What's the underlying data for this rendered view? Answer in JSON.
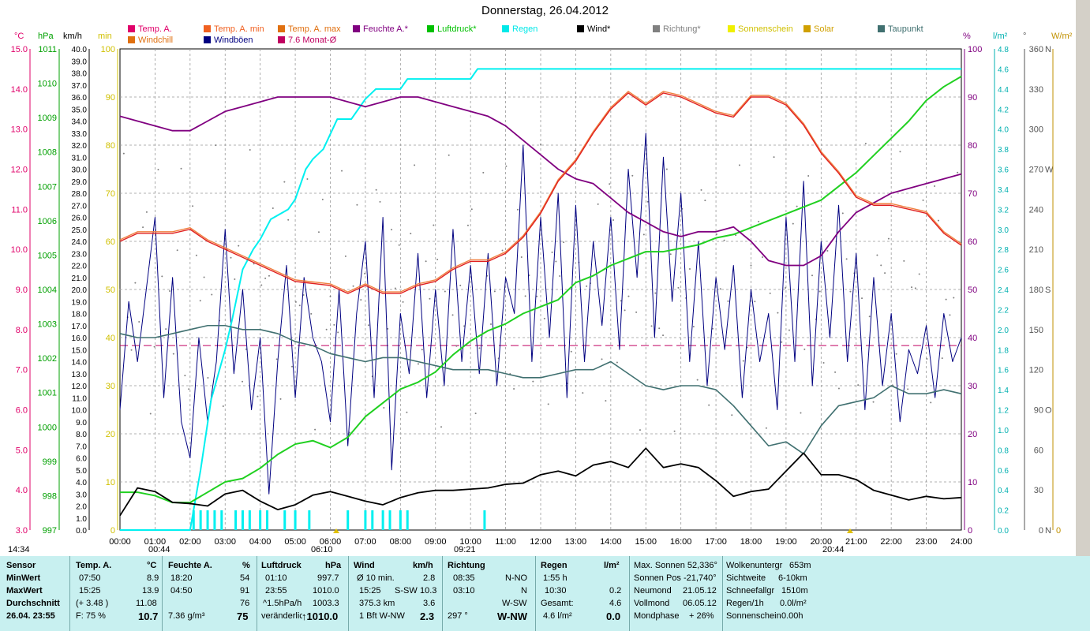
{
  "title": "Donnerstag, 26.04.2012",
  "legend_row1": [
    {
      "label": "Temp. A.",
      "color": "#e0006a"
    },
    {
      "label": "Temp. A. min",
      "color": "#f06020"
    },
    {
      "label": "Temp. A. max",
      "color": "#e07010"
    },
    {
      "label": "Feuchte A.*",
      "color": "#800080"
    },
    {
      "label": "Luftdruck*",
      "color": "#00c000"
    },
    {
      "label": "Regen",
      "color": "#00e8e8"
    },
    {
      "label": "Wind*",
      "color": "#000000"
    },
    {
      "label": "Richtung*",
      "color": "#808080"
    },
    {
      "label": "Sonnenschein",
      "color": "#f0f000"
    },
    {
      "label": "Solar",
      "color": "#d0a000"
    },
    {
      "label": "Taupunkt",
      "color": "#407070"
    }
  ],
  "legend_row2": [
    {
      "label": "Windchill",
      "color": "#e07010"
    },
    {
      "label": "Windböen",
      "color": "#000080"
    },
    {
      "label": "7.6 Monat-Ø",
      "color": "#c00060"
    }
  ],
  "axis_headers": {
    "temp": "°C",
    "press": "hPa",
    "wind": "km/h",
    "min": "min",
    "hum": "%",
    "rain": "l/m²",
    "dir": "°",
    "solar": "W/m²"
  },
  "chart_data": {
    "type": "line",
    "title": "Donnerstag, 26.04.2012",
    "x_ticks": [
      "00:00",
      "01:00",
      "02:00",
      "03:00",
      "04:00",
      "05:00",
      "06:00",
      "07:00",
      "08:00",
      "09:00",
      "10:00",
      "11:00",
      "12:00",
      "13:00",
      "14:00",
      "15:00",
      "16:00",
      "17:00",
      "18:00",
      "19:00",
      "20:00",
      "21:00",
      "22:00",
      "23:00",
      "24:00"
    ],
    "axes": {
      "temp": {
        "range": [
          3.0,
          15.0
        ],
        "ticks": [
          "3.0",
          "4.0",
          "5.0",
          "6.0",
          "7.0",
          "8.0",
          "9.0",
          "10.0",
          "11.0",
          "12.0",
          "13.0",
          "14.0",
          "15.0"
        ]
      },
      "pressure": {
        "range": [
          997,
          1011
        ],
        "ticks": [
          "997",
          "998",
          "999",
          "1000",
          "1001",
          "1002",
          "1003",
          "1004",
          "1005",
          "1006",
          "1007",
          "1008",
          "1009",
          "1010",
          "1011"
        ]
      },
      "wind": {
        "range": [
          0.0,
          40.0
        ],
        "ticks": [
          "0.0",
          "1.0",
          "2.0",
          "3.0",
          "4.0",
          "5.0",
          "6.0",
          "7.0",
          "8.0",
          "9.0",
          "10.0",
          "11.0",
          "12.0",
          "13.0",
          "14.0",
          "15.0",
          "16.0",
          "17.0",
          "18.0",
          "19.0",
          "20.0",
          "21.0",
          "22.0",
          "23.0",
          "24.0",
          "25.0",
          "26.0",
          "27.0",
          "28.0",
          "29.0",
          "30.0",
          "31.0",
          "32.0",
          "33.0",
          "34.0",
          "35.0",
          "36.0",
          "37.0",
          "38.0",
          "39.0",
          "40.0"
        ]
      },
      "minutes": {
        "range": [
          0,
          100
        ],
        "ticks": [
          "0",
          "10",
          "20",
          "30",
          "40",
          "50",
          "60",
          "70",
          "80",
          "90",
          "100"
        ]
      },
      "humidity": {
        "range": [
          0,
          100
        ],
        "ticks": [
          "0",
          "10",
          "20",
          "30",
          "40",
          "50",
          "60",
          "70",
          "80",
          "90",
          "100"
        ]
      },
      "rain": {
        "range": [
          0.0,
          4.8
        ],
        "ticks": [
          "0.0",
          "0.2",
          "0.4",
          "0.6",
          "0.8",
          "1.0",
          "1.2",
          "1.4",
          "1.6",
          "1.8",
          "2.0",
          "2.2",
          "2.4",
          "2.6",
          "2.8",
          "3.0",
          "3.2",
          "3.4",
          "3.6",
          "3.8",
          "4.0",
          "4.2",
          "4.4",
          "4.6",
          "4.8"
        ]
      },
      "direction": {
        "range": [
          0,
          360
        ],
        "ticks": [
          "0",
          "30",
          "60",
          "90",
          "120",
          "150",
          "180",
          "210",
          "240",
          "270",
          "300",
          "330",
          "360"
        ],
        "labels": {
          "0": "N",
          "90": "O",
          "180": "S",
          "270": "W",
          "360": "N"
        }
      },
      "solar": {
        "range": [
          0,
          0
        ],
        "ticks": [
          "0"
        ]
      }
    },
    "series": [
      {
        "name": "Temp. A.",
        "axis": "temp",
        "color": "#e02020",
        "x": [
          0,
          0.5,
          1,
          1.5,
          2,
          2.5,
          3,
          4,
          5,
          6,
          6.5,
          7,
          7.5,
          8,
          8.5,
          9,
          9.5,
          10,
          10.5,
          11,
          11.5,
          12,
          12.5,
          13,
          13.5,
          14,
          14.5,
          15,
          15.5,
          16,
          16.5,
          17,
          17.5,
          18,
          18.5,
          19,
          19.5,
          20,
          20.5,
          21,
          21.5,
          22,
          22.5,
          23,
          23.5,
          24
        ],
        "values": [
          10.2,
          10.4,
          10.4,
          10.4,
          10.5,
          10.2,
          10.0,
          9.6,
          9.2,
          9.1,
          8.9,
          9.1,
          8.9,
          8.9,
          9.1,
          9.2,
          9.5,
          9.7,
          9.7,
          9.9,
          10.3,
          10.9,
          11.7,
          12.2,
          12.9,
          13.5,
          13.9,
          13.6,
          13.9,
          13.8,
          13.6,
          13.4,
          13.3,
          13.8,
          13.8,
          13.6,
          13.1,
          12.4,
          11.9,
          11.3,
          11.1,
          11.1,
          11.0,
          10.9,
          10.4,
          10.1
        ]
      },
      {
        "name": "Feuchte A.*",
        "axis": "humidity",
        "color": "#800080",
        "x": [
          0,
          0.5,
          1,
          1.5,
          2,
          2.5,
          3,
          3.5,
          4,
          4.5,
          5,
          5.5,
          6,
          6.5,
          7,
          7.5,
          8,
          8.5,
          9,
          9.5,
          10,
          10.5,
          11,
          11.5,
          12,
          12.5,
          13,
          13.5,
          14,
          14.5,
          15,
          15.5,
          16,
          16.5,
          17,
          17.5,
          18,
          18.5,
          19,
          19.5,
          20,
          20.5,
          21,
          21.5,
          22,
          22.5,
          23,
          23.5,
          24
        ],
        "values": [
          86,
          85,
          84,
          83,
          83,
          85,
          87,
          88,
          89,
          90,
          90,
          90,
          90,
          89,
          88,
          89,
          90,
          90,
          89,
          88,
          87,
          86,
          84,
          81,
          78,
          75,
          73,
          72,
          69,
          66,
          64,
          62,
          61,
          62,
          62,
          63,
          60,
          56,
          55,
          55,
          57,
          62,
          66,
          68,
          70,
          71,
          72,
          73,
          74
        ]
      },
      {
        "name": "Luftdruck*",
        "axis": "pressure",
        "color": "#20d020",
        "x": [
          0,
          0.5,
          1,
          1.5,
          2,
          2.5,
          3,
          3.5,
          4,
          4.5,
          5,
          5.5,
          6,
          6.5,
          7,
          7.5,
          8,
          8.5,
          9,
          9.5,
          10,
          10.5,
          11,
          11.5,
          12,
          12.5,
          13,
          13.5,
          14,
          14.5,
          15,
          15.5,
          16,
          16.5,
          17,
          17.5,
          18,
          18.5,
          19,
          19.5,
          20,
          20.5,
          21,
          21.5,
          22,
          22.5,
          23,
          23.5,
          24
        ],
        "values": [
          998.1,
          998.1,
          998.0,
          997.8,
          997.8,
          998.1,
          998.4,
          998.5,
          998.8,
          999.2,
          999.5,
          999.6,
          999.4,
          999.7,
          1000.3,
          1000.7,
          1001.1,
          1001.3,
          1001.6,
          1002.1,
          1002.5,
          1002.8,
          1003.0,
          1003.3,
          1003.5,
          1003.7,
          1004.2,
          1004.4,
          1004.7,
          1004.9,
          1005.1,
          1005.1,
          1005.2,
          1005.3,
          1005.5,
          1005.6,
          1005.8,
          1006.0,
          1006.2,
          1006.4,
          1006.6,
          1007.0,
          1007.4,
          1007.9,
          1008.4,
          1008.9,
          1009.5,
          1009.9,
          1010.2
        ]
      },
      {
        "name": "Regen",
        "axis": "rain",
        "color": "#00f0f0",
        "x": [
          0,
          2.0,
          2.3,
          2.6,
          3.0,
          3.2,
          3.5,
          3.8,
          4.0,
          4.3,
          4.8,
          5.0,
          5.3,
          5.5,
          5.8,
          6.2,
          6.6,
          7.0,
          7.3,
          7.6,
          8.0,
          8.2,
          8.5,
          9.5,
          10.0,
          10.2,
          10.5,
          24
        ],
        "values": [
          0,
          0,
          0.6,
          1.3,
          1.8,
          2.1,
          2.6,
          2.8,
          2.9,
          3.1,
          3.2,
          3.3,
          3.6,
          3.7,
          3.8,
          4.1,
          4.1,
          4.3,
          4.4,
          4.4,
          4.4,
          4.5,
          4.5,
          4.5,
          4.5,
          4.6,
          4.6,
          4.6
        ]
      },
      {
        "name": "Taupunkt",
        "axis": "temp",
        "color": "#407070",
        "x": [
          0,
          0.5,
          1,
          1.5,
          2,
          2.5,
          3,
          3.5,
          4,
          4.5,
          5,
          5.5,
          6,
          6.5,
          7,
          7.5,
          8,
          8.5,
          9,
          9.5,
          10,
          10.5,
          11,
          11.5,
          12,
          12.5,
          13,
          13.5,
          14,
          14.5,
          15,
          15.5,
          16,
          16.5,
          17,
          17.5,
          18,
          18.5,
          19,
          19.5,
          20,
          20.5,
          21,
          21.5,
          22,
          22.5,
          23,
          23.5,
          24
        ],
        "values": [
          7.9,
          7.8,
          7.8,
          7.9,
          8.0,
          8.1,
          8.1,
          8.0,
          8.0,
          7.9,
          7.7,
          7.6,
          7.4,
          7.3,
          7.2,
          7.3,
          7.3,
          7.2,
          7.1,
          7.0,
          7.0,
          7.0,
          6.9,
          6.8,
          6.8,
          6.9,
          7.0,
          7.0,
          7.2,
          6.9,
          6.6,
          6.5,
          6.6,
          6.6,
          6.5,
          6.1,
          5.6,
          5.1,
          5.2,
          4.9,
          5.6,
          6.1,
          6.2,
          6.3,
          6.6,
          6.4,
          6.4,
          6.5,
          6.4
        ]
      },
      {
        "name": "Wind*",
        "axis": "wind",
        "color": "#000000",
        "x": [
          0,
          0.5,
          1,
          1.5,
          2,
          2.5,
          3,
          3.5,
          4,
          4.5,
          5,
          5.5,
          6,
          6.5,
          7,
          7.5,
          8,
          8.5,
          9,
          9.5,
          10,
          10.5,
          11,
          11.5,
          12,
          12.5,
          13,
          13.5,
          14,
          14.5,
          15,
          15.5,
          16,
          16.5,
          17,
          17.5,
          18,
          18.5,
          19,
          19.5,
          20,
          20.5,
          21,
          21.5,
          22,
          22.5,
          23,
          23.5,
          24
        ],
        "values": [
          1.2,
          3.5,
          3.2,
          2.3,
          2.2,
          2.0,
          3.0,
          3.3,
          2.4,
          1.7,
          2.1,
          2.9,
          3.2,
          2.8,
          2.4,
          2.1,
          2.7,
          3.1,
          3.3,
          3.3,
          3.4,
          3.5,
          3.8,
          3.9,
          4.6,
          4.9,
          4.5,
          5.4,
          5.7,
          5.2,
          6.8,
          5.2,
          5.5,
          5.2,
          4.1,
          2.8,
          3.2,
          3.4,
          4.9,
          6.4,
          4.6,
          4.6,
          4.2,
          3.3,
          2.9,
          2.5,
          2.8,
          2.6,
          2.7
        ]
      },
      {
        "name": "Windböen",
        "axis": "wind",
        "color": "#000080",
        "x": [
          0,
          0.25,
          0.5,
          0.75,
          1,
          1.25,
          1.5,
          1.75,
          2,
          2.25,
          2.5,
          2.75,
          3,
          3.25,
          3.5,
          3.75,
          4,
          4.25,
          4.5,
          4.75,
          5,
          5.25,
          5.5,
          5.75,
          6,
          6.25,
          6.5,
          6.75,
          7,
          7.25,
          7.5,
          7.75,
          8,
          8.25,
          8.5,
          8.75,
          9,
          9.25,
          9.5,
          9.75,
          10,
          10.25,
          10.5,
          10.75,
          11,
          11.25,
          11.5,
          11.75,
          12,
          12.25,
          12.5,
          12.75,
          13,
          13.25,
          13.5,
          13.75,
          14,
          14.25,
          14.5,
          14.75,
          15,
          15.25,
          15.5,
          15.75,
          16,
          16.25,
          16.5,
          16.75,
          17,
          17.25,
          17.5,
          17.75,
          18,
          18.25,
          18.5,
          18.75,
          19,
          19.25,
          19.5,
          19.75,
          20,
          20.25,
          20.5,
          20.75,
          21,
          21.25,
          21.5,
          21.75,
          22,
          22.25,
          22.5,
          22.75,
          23,
          23.25,
          23.5,
          23.75,
          24
        ],
        "values": [
          10,
          19,
          14,
          20,
          26,
          11,
          21,
          9,
          6,
          16,
          9,
          14,
          25,
          13,
          20,
          10,
          16,
          3,
          14,
          22,
          11,
          21,
          16,
          14,
          9,
          20,
          7,
          18,
          24,
          11,
          26,
          5,
          18,
          13,
          23,
          11,
          20,
          12,
          25,
          14,
          22,
          13,
          23,
          12,
          21,
          18,
          32,
          14,
          26,
          16,
          28,
          11,
          27,
          14,
          24,
          17,
          26,
          15,
          30,
          21,
          33,
          16,
          31,
          19,
          28,
          14,
          24,
          12,
          21,
          15,
          22,
          11,
          20,
          14,
          18,
          10,
          26,
          14,
          29,
          12,
          24,
          16,
          27,
          14,
          23,
          10,
          21,
          12,
          18,
          9,
          15,
          13,
          17,
          11,
          18,
          14,
          16
        ]
      }
    ],
    "reference_line": {
      "name": "7.6 Monat-Ø",
      "axis": "temp",
      "value": 7.6,
      "color": "#c00060"
    },
    "markers": {
      "sunrise": "06:10",
      "sunset": "20:44",
      "left": "14:34",
      "left2": "00:44",
      "solar_noon": "09:21"
    }
  },
  "table": {
    "headers": {
      "sensor": "Sensor",
      "temp": "Temp. A.",
      "temp_unit": "°C",
      "hum": "Feuchte A.",
      "hum_unit": "%",
      "press": "Luftdruck",
      "press_unit": "hPa",
      "wind": "Wind",
      "wind_unit": "km/h",
      "dir": "Richtung",
      "rain": "Regen",
      "rain_unit": "l/m²"
    },
    "row_labels": {
      "min": "MinWert",
      "max": "MaxWert",
      "avg": "Durchschnitt",
      "now": "26.04. 23:55"
    },
    "temp": {
      "min_time": "07:50",
      "min_val": "8.9",
      "max_time": "15:25",
      "max_val": "13.9",
      "avg_note": "(+ 3.48 )",
      "avg_val": "11.08",
      "now_note": "F: 75 %",
      "now_val": "10.7"
    },
    "hum": {
      "min_time": "18:20",
      "min_val": "54",
      "max_time": "04:50",
      "max_val": "91",
      "avg_val": "76",
      "now_note": "7.36 g/m³",
      "now_val": "75"
    },
    "press": {
      "min_time": "01:10",
      "min_val": "997.7",
      "max_time": "23:55",
      "max_val": "1010.0",
      "avg_note": "^1.5hPa/h",
      "avg_val": "1003.3",
      "now_note": "veränderlich",
      "now_val": "↑1010.0"
    },
    "wind": {
      "r1_label": "Ø 10 min.",
      "r1_val": "2.8",
      "r2_time": "15:25",
      "r2_dir": "S-SW",
      "r2_val": "10.3",
      "r3_dist": "375.3 km",
      "r3_val": "3.6",
      "r4_bft": "1 Bft W-NW",
      "r4_val": "2.3"
    },
    "dir": {
      "r1_time": "08:35",
      "r1_val": "N-NO",
      "r2_time": "03:10",
      "r2_val": "N",
      "r3_val": "W-SW",
      "r4_deg": "297 °",
      "r4_val": "W-NW"
    },
    "rain": {
      "r1_label": "1:55 h",
      "r2_time": "10:30",
      "r2_val": "0.2",
      "r3_label": "Gesamt:",
      "r3_val": "4.6",
      "r4_label": "4.6 l/m²",
      "r4_val": "0.0"
    },
    "sun": {
      "l1": "Max. Sonnen 52,336°",
      "l2": "Sonnen Pos -21,740°",
      "l3_a": "Neumond",
      "l3_b": "21.05.12",
      "l4_a": "Vollmond",
      "l4_b": "06.05.12",
      "l5_a": "Mondphase",
      "l5_b": "+ 26%"
    },
    "misc": {
      "l1_a": "Wolkenuntergr",
      "l1_b": "653m",
      "l2_a": "Sichtweite",
      "l2_b": "6-10km",
      "l3_a": "Schneefallgr",
      "l3_b": "1510m",
      "l4_a": "Regen/1h",
      "l4_b": "0.0l/m²",
      "l5_a": "Sonnenschein",
      "l5_b": "0.00h"
    }
  }
}
